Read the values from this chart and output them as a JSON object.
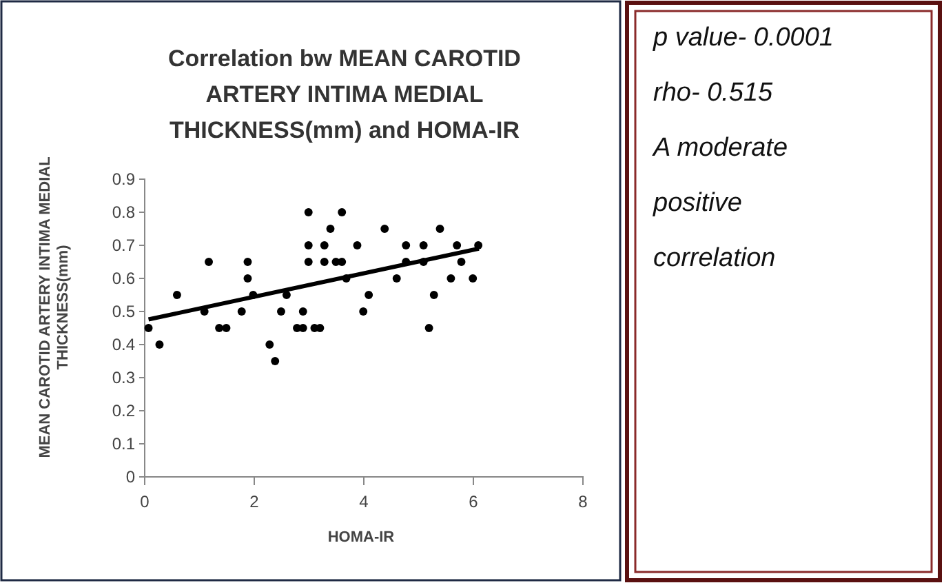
{
  "chart_data": [
    {
      "type": "scatter",
      "title": "Correlation bw MEAN CAROTID ARTERY INTIMA MEDIAL THICKNESS(mm)  and HOMA-IR",
      "xlabel": "HOMA-IR",
      "ylabel": "MEAN CAROTID ARTERY INTIMA MEDIAL THICKNESS(mm)",
      "xlim": [
        0,
        8
      ],
      "xticks": [
        0,
        2,
        4,
        6,
        8
      ],
      "ylim": [
        0,
        0.9
      ],
      "yticks": [
        0,
        0.1,
        0.2,
        0.3,
        0.4,
        0.5,
        0.6,
        0.7,
        0.8,
        0.9
      ],
      "grid": false,
      "series": [
        {
          "type": "scatter",
          "marker": "circle",
          "color": "#000000",
          "x": [
            0.07,
            0.27,
            0.59,
            1.09,
            1.17,
            1.36,
            1.49,
            1.77,
            1.88,
            1.88,
            1.98,
            2.28,
            2.38,
            2.49,
            2.59,
            2.78,
            2.89,
            2.89,
            2.99,
            2.99,
            2.99,
            3.1,
            3.2,
            3.28,
            3.28,
            3.39,
            3.49,
            3.6,
            3.6,
            3.68,
            3.88,
            3.99,
            4.09,
            4.38,
            4.6,
            4.77,
            4.77,
            5.09,
            5.09,
            5.19,
            5.28,
            5.39,
            5.59,
            5.7,
            5.78,
            5.99,
            6.09
          ],
          "values": [
            0.45,
            0.4,
            0.55,
            0.5,
            0.65,
            0.45,
            0.45,
            0.5,
            0.65,
            0.6,
            0.55,
            0.4,
            0.35,
            0.5,
            0.55,
            0.45,
            0.45,
            0.5,
            0.8,
            0.7,
            0.65,
            0.45,
            0.45,
            0.7,
            0.65,
            0.75,
            0.65,
            0.65,
            0.8,
            0.6,
            0.7,
            0.5,
            0.55,
            0.75,
            0.6,
            0.7,
            0.65,
            0.7,
            0.65,
            0.45,
            0.55,
            0.75,
            0.6,
            0.7,
            0.65,
            0.6,
            0.7
          ]
        },
        {
          "type": "line",
          "marker": "none",
          "color": "#000000",
          "x": [
            0.07,
            6.1
          ],
          "values": [
            0.476,
            0.69
          ]
        }
      ]
    },
    {
      "type": "other",
      "annotations": [
        "p value- 0.0001",
        "rho- 0.515",
        "A moderate positive correlation"
      ]
    }
  ]
}
